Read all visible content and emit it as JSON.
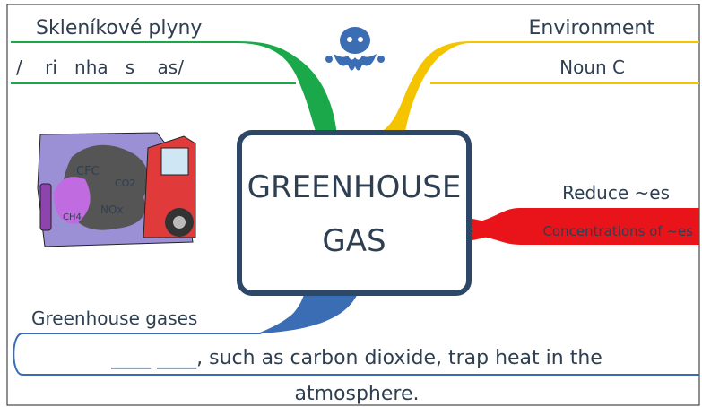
{
  "branches": {
    "top_left": {
      "title": "Skleníkové plyny",
      "subtitle": "/    ri   nha   s    as/"
    },
    "top_right": {
      "title": "Environment",
      "subtitle": "Noun C"
    },
    "right": {
      "title": "Reduce ~es",
      "subtitle": "Concentrations of ~es"
    },
    "bottom": {
      "title": "Greenhouse gases",
      "sentence_line1": "____ ____, such as carbon dioxide, trap heat in the",
      "sentence_line2": "atmosphere."
    }
  },
  "center": {
    "lines": [
      "GREENHOUSE",
      "GAS"
    ]
  },
  "illustration": {
    "labels": [
      "CFC",
      "CO2",
      "NOx",
      "CH4"
    ]
  }
}
